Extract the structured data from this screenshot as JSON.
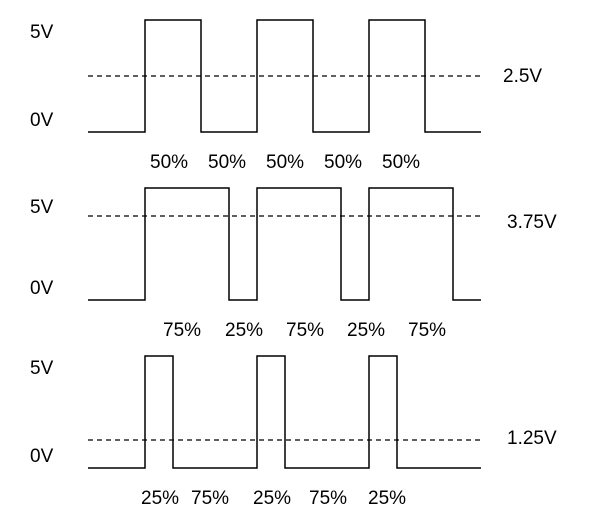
{
  "panels": [
    {
      "high_label": "5V",
      "low_label": "0V",
      "average_label": "2.5V",
      "duty_labels": [
        "50%",
        "50%",
        "50%",
        "50%",
        "50%"
      ]
    },
    {
      "high_label": "5V",
      "low_label": "0V",
      "average_label": "3.75V",
      "duty_labels": [
        "75%",
        "25%",
        "75%",
        "25%",
        "75%"
      ]
    },
    {
      "high_label": "5V",
      "low_label": "0V",
      "average_label": "1.25V",
      "duty_labels": [
        "25%",
        "75%",
        "25%",
        "75%",
        "25%"
      ]
    }
  ]
}
